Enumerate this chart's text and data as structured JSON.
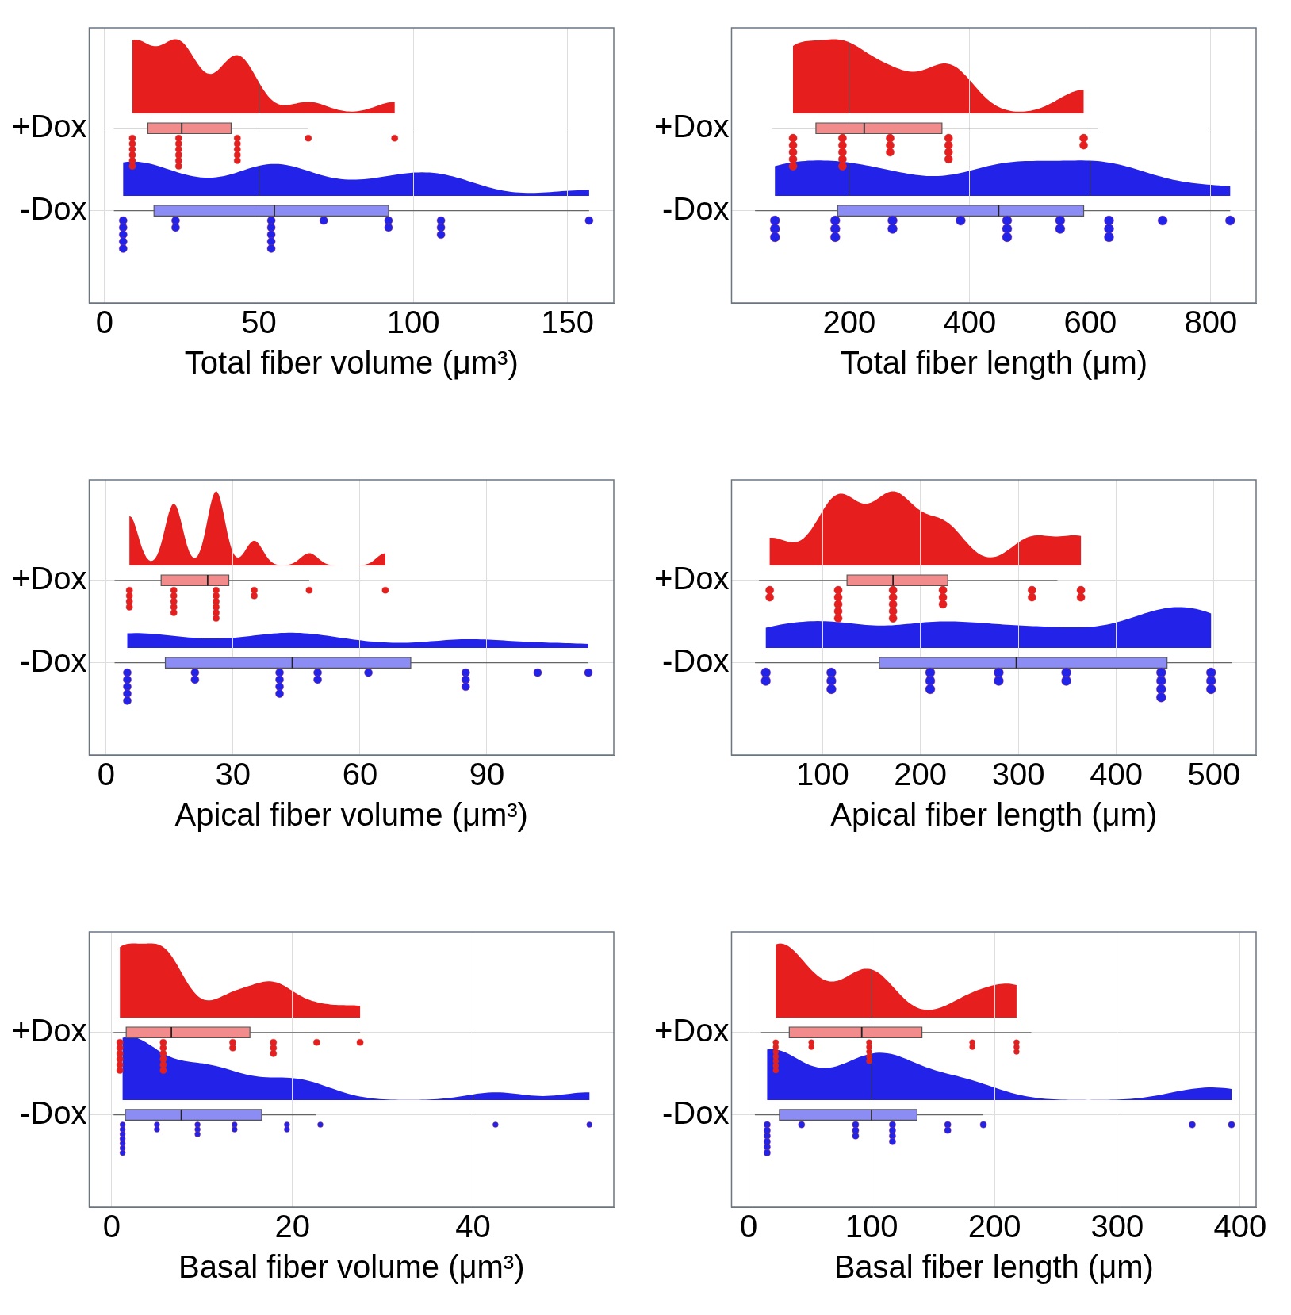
{
  "chart_data": [
    {
      "type": "box",
      "orientation": "horizontal",
      "categories": [
        "+Dox",
        "-Dox"
      ],
      "xlabel": "Total fiber volume (μm³)",
      "xlim": [
        -5,
        165
      ],
      "xticks": [
        0,
        50,
        100,
        150
      ],
      "grid": true,
      "series": [
        {
          "type": "box",
          "colors": [
            "#f28b8b",
            "#8c8cf5"
          ],
          "boxes": [
            {
              "low": 3,
              "q1": 14,
              "median": 25,
              "q3": 41,
              "high": 66
            },
            {
              "low": 3,
              "q1": 16,
              "median": 55,
              "q3": 92,
              "high": 157
            }
          ]
        },
        {
          "type": "scatter",
          "marker": "circle",
          "color": "#e61e1e",
          "x": [
            "+Dox",
            "+Dox",
            "+Dox",
            "+Dox",
            "+Dox",
            "+Dox",
            "+Dox",
            "+Dox",
            "+Dox",
            "+Dox",
            "+Dox",
            "+Dox",
            "+Dox",
            "+Dox",
            "+Dox",
            "+Dox",
            "+Dox",
            "+Dox",
            "+Dox"
          ],
          "values": [
            9,
            9,
            9,
            9,
            9,
            9,
            24,
            24,
            24,
            24,
            24,
            24,
            43,
            43,
            43,
            43,
            43,
            66,
            94
          ]
        },
        {
          "type": "scatter",
          "marker": "circle",
          "color": "#2222e8",
          "x": [
            "-Dox",
            "-Dox",
            "-Dox",
            "-Dox",
            "-Dox",
            "-Dox",
            "-Dox",
            "-Dox",
            "-Dox",
            "-Dox",
            "-Dox",
            "-Dox",
            "-Dox",
            "-Dox",
            "-Dox",
            "-Dox",
            "-Dox",
            "-Dox",
            "-Dox"
          ],
          "values": [
            6,
            6,
            6,
            6,
            6,
            23,
            23,
            54,
            54,
            54,
            54,
            54,
            71,
            92,
            92,
            109,
            109,
            109,
            157
          ]
        }
      ]
    },
    {
      "type": "box",
      "orientation": "horizontal",
      "categories": [
        "+Dox",
        "-Dox"
      ],
      "xlabel": "Total fiber length (μm)",
      "xlim": [
        5,
        875
      ],
      "xticks": [
        200,
        400,
        600,
        800
      ],
      "grid": true,
      "series": [
        {
          "type": "box",
          "colors": [
            "#f28b8b",
            "#8c8cf5"
          ],
          "boxes": [
            {
              "low": 73,
              "q1": 145,
              "median": 225,
              "q3": 354,
              "high": 613
            },
            {
              "low": 44,
              "q1": 181,
              "median": 448,
              "q3": 589,
              "high": 832
            }
          ]
        },
        {
          "type": "scatter",
          "marker": "circle",
          "color": "#e61e1e",
          "x": [
            "+Dox",
            "+Dox",
            "+Dox",
            "+Dox",
            "+Dox",
            "+Dox",
            "+Dox",
            "+Dox",
            "+Dox",
            "+Dox",
            "+Dox",
            "+Dox",
            "+Dox",
            "+Dox",
            "+Dox",
            "+Dox",
            "+Dox",
            "+Dox",
            "+Dox"
          ],
          "values": [
            107,
            107,
            107,
            107,
            107,
            189,
            189,
            189,
            189,
            189,
            268,
            268,
            268,
            365,
            365,
            365,
            365,
            589,
            589
          ]
        },
        {
          "type": "scatter",
          "marker": "circle",
          "color": "#2222e8",
          "x": [
            "-Dox",
            "-Dox",
            "-Dox",
            "-Dox",
            "-Dox",
            "-Dox",
            "-Dox",
            "-Dox",
            "-Dox",
            "-Dox",
            "-Dox",
            "-Dox",
            "-Dox",
            "-Dox",
            "-Dox",
            "-Dox",
            "-Dox",
            "-Dox",
            "-Dox"
          ],
          "values": [
            77,
            77,
            77,
            177,
            177,
            177,
            272,
            272,
            385,
            462,
            462,
            462,
            550,
            550,
            631,
            631,
            631,
            720,
            832
          ]
        }
      ]
    },
    {
      "type": "box",
      "orientation": "horizontal",
      "categories": [
        "+Dox",
        "-Dox"
      ],
      "xlabel": "Apical fiber volume (μm³)",
      "xlim": [
        -4,
        120
      ],
      "xticks": [
        0,
        30,
        60,
        90
      ],
      "grid": true,
      "series": [
        {
          "type": "box",
          "colors": [
            "#f28b8b",
            "#8c8cf5"
          ],
          "boxes": [
            {
              "low": 2,
              "q1": 13,
              "median": 24,
              "q3": 29,
              "high": 48
            },
            {
              "low": 2,
              "q1": 14,
              "median": 44,
              "q3": 72,
              "high": 114
            }
          ]
        },
        {
          "type": "scatter",
          "marker": "circle",
          "color": "#e61e1e",
          "x": [
            "+Dox",
            "+Dox",
            "+Dox",
            "+Dox",
            "+Dox",
            "+Dox",
            "+Dox",
            "+Dox",
            "+Dox",
            "+Dox",
            "+Dox",
            "+Dox",
            "+Dox",
            "+Dox",
            "+Dox",
            "+Dox",
            "+Dox",
            "+Dox",
            "+Dox"
          ],
          "values": [
            5.5,
            5.5,
            5.5,
            5.5,
            16,
            16,
            16,
            16,
            16,
            26,
            26,
            26,
            26,
            26,
            26,
            35,
            35,
            48,
            66
          ]
        },
        {
          "type": "scatter",
          "marker": "circle",
          "color": "#2222e8",
          "x": [
            "-Dox",
            "-Dox",
            "-Dox",
            "-Dox",
            "-Dox",
            "-Dox",
            "-Dox",
            "-Dox",
            "-Dox",
            "-Dox",
            "-Dox",
            "-Dox",
            "-Dox",
            "-Dox",
            "-Dox",
            "-Dox",
            "-Dox",
            "-Dox",
            "-Dox"
          ],
          "values": [
            5,
            5,
            5,
            5,
            5,
            21,
            21,
            41,
            41,
            41,
            41,
            50,
            50,
            62,
            85,
            85,
            85,
            102,
            114
          ]
        }
      ]
    },
    {
      "type": "box",
      "orientation": "horizontal",
      "categories": [
        "+Dox",
        "-Dox"
      ],
      "xlabel": "Apical fiber length (μm)",
      "xlim": [
        7,
        543
      ],
      "xticks": [
        100,
        200,
        300,
        400,
        500
      ],
      "grid": true,
      "series": [
        {
          "type": "box",
          "colors": [
            "#f28b8b",
            "#8c8cf5"
          ],
          "boxes": [
            {
              "low": 35,
              "q1": 125,
              "median": 172,
              "q3": 228,
              "high": 340
            },
            {
              "low": 31,
              "q1": 158,
              "median": 298,
              "q3": 452,
              "high": 518
            }
          ]
        },
        {
          "type": "scatter",
          "marker": "circle",
          "color": "#e61e1e",
          "x": [
            "+Dox",
            "+Dox",
            "+Dox",
            "+Dox",
            "+Dox",
            "+Dox",
            "+Dox",
            "+Dox",
            "+Dox",
            "+Dox",
            "+Dox",
            "+Dox",
            "+Dox",
            "+Dox",
            "+Dox",
            "+Dox",
            "+Dox",
            "+Dox",
            "+Dox"
          ],
          "values": [
            46,
            46,
            116,
            116,
            116,
            116,
            116,
            172,
            172,
            172,
            172,
            172,
            223,
            223,
            223,
            314,
            314,
            364,
            364
          ]
        },
        {
          "type": "scatter",
          "marker": "circle",
          "color": "#2222e8",
          "x": [
            "-Dox",
            "-Dox",
            "-Dox",
            "-Dox",
            "-Dox",
            "-Dox",
            "-Dox",
            "-Dox",
            "-Dox",
            "-Dox",
            "-Dox",
            "-Dox",
            "-Dox",
            "-Dox",
            "-Dox",
            "-Dox",
            "-Dox",
            "-Dox",
            "-Dox"
          ],
          "values": [
            42,
            42,
            109,
            109,
            109,
            210,
            210,
            210,
            280,
            280,
            349,
            349,
            446,
            446,
            446,
            446,
            497,
            497,
            497
          ]
        }
      ]
    },
    {
      "type": "box",
      "orientation": "horizontal",
      "categories": [
        "+Dox",
        "-Dox"
      ],
      "xlabel": "Basal fiber volume (μm³)",
      "xlim": [
        -2.5,
        55.6
      ],
      "xticks": [
        0,
        20,
        40
      ],
      "grid": true,
      "series": [
        {
          "type": "box",
          "colors": [
            "#f28b8b",
            "#8c8cf5"
          ],
          "boxes": [
            {
              "low": 0.2,
              "q1": 1.6,
              "median": 6.6,
              "q3": 15.3,
              "high": 27.5
            },
            {
              "low": 0.2,
              "q1": 1.5,
              "median": 7.7,
              "q3": 16.6,
              "high": 22.6
            }
          ]
        },
        {
          "type": "scatter",
          "marker": "circle",
          "color": "#e61e1e",
          "x": [
            "+Dox",
            "+Dox",
            "+Dox",
            "+Dox",
            "+Dox",
            "+Dox",
            "+Dox",
            "+Dox",
            "+Dox",
            "+Dox",
            "+Dox",
            "+Dox",
            "+Dox",
            "+Dox",
            "+Dox",
            "+Dox",
            "+Dox",
            "+Dox",
            "+Dox"
          ],
          "values": [
            0.9,
            0.9,
            0.9,
            0.9,
            0.9,
            0.9,
            5.7,
            5.7,
            5.7,
            5.7,
            5.7,
            5.7,
            13.4,
            13.4,
            17.9,
            17.9,
            17.9,
            22.7,
            27.5
          ]
        },
        {
          "type": "scatter",
          "marker": "circle",
          "color": "#2222e8",
          "x": [
            "-Dox",
            "-Dox",
            "-Dox",
            "-Dox",
            "-Dox",
            "-Dox",
            "-Dox",
            "-Dox",
            "-Dox",
            "-Dox",
            "-Dox",
            "-Dox",
            "-Dox",
            "-Dox",
            "-Dox",
            "-Dox",
            "-Dox",
            "-Dox",
            "-Dox"
          ],
          "values": [
            1.2,
            1.2,
            1.2,
            1.2,
            1.2,
            1.2,
            1.2,
            5,
            5,
            9.5,
            9.5,
            9.5,
            13.6,
            13.6,
            19.4,
            19.4,
            23.1,
            42.5,
            52.9
          ]
        }
      ]
    },
    {
      "type": "box",
      "orientation": "horizontal",
      "categories": [
        "+Dox",
        "-Dox"
      ],
      "xlabel": "Basal fiber length (μm)",
      "xlim": [
        -14,
        413
      ],
      "xticks": [
        0,
        100,
        200,
        300,
        400
      ],
      "grid": true,
      "series": [
        {
          "type": "box",
          "colors": [
            "#f28b8b",
            "#8c8cf5"
          ],
          "boxes": [
            {
              "low": 10,
              "q1": 33,
              "median": 92,
              "q3": 141,
              "high": 230
            },
            {
              "low": 5,
              "q1": 25,
              "median": 100,
              "q3": 137,
              "high": 191
            }
          ]
        },
        {
          "type": "scatter",
          "marker": "circle",
          "color": "#e61e1e",
          "x": [
            "+Dox",
            "+Dox",
            "+Dox",
            "+Dox",
            "+Dox",
            "+Dox",
            "+Dox",
            "+Dox",
            "+Dox",
            "+Dox",
            "+Dox",
            "+Dox",
            "+Dox",
            "+Dox",
            "+Dox",
            "+Dox",
            "+Dox",
            "+Dox",
            "+Dox"
          ],
          "values": [
            22,
            22,
            22,
            22,
            22,
            22,
            22,
            51,
            51,
            98,
            98,
            98,
            98,
            98,
            182,
            182,
            218,
            218,
            218
          ]
        },
        {
          "type": "scatter",
          "marker": "circle",
          "color": "#2222e8",
          "x": [
            "-Dox",
            "-Dox",
            "-Dox",
            "-Dox",
            "-Dox",
            "-Dox",
            "-Dox",
            "-Dox",
            "-Dox",
            "-Dox",
            "-Dox",
            "-Dox",
            "-Dox",
            "-Dox",
            "-Dox",
            "-Dox",
            "-Dox",
            "-Dox",
            "-Dox"
          ],
          "values": [
            15,
            15,
            15,
            15,
            15,
            15,
            43,
            87,
            87,
            87,
            117,
            117,
            117,
            117,
            162,
            162,
            191,
            361,
            393
          ]
        }
      ]
    }
  ]
}
